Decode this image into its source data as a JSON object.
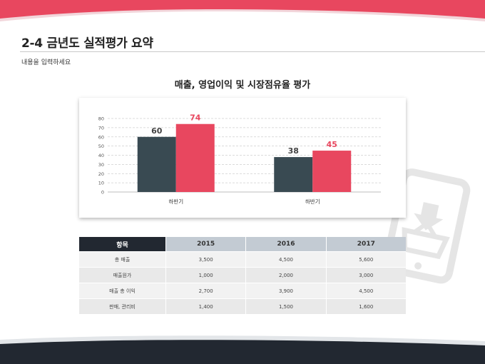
{
  "slide": {
    "title": "2-4 금년도 실적평가 요약",
    "subtitle": "내용을 입력하세요"
  },
  "colors": {
    "accent": "#e8475f",
    "dark": "#394a52",
    "table_header_dark": "#222831",
    "table_header_light": "#c3cbd3"
  },
  "chart_data": {
    "type": "bar",
    "title": "매출, 영업이익 및 시장점유율 평가",
    "categories": [
      "하반기",
      "하반기"
    ],
    "series": [
      {
        "values": [
          60,
          38
        ],
        "color": "#394a52"
      },
      {
        "values": [
          74,
          45
        ],
        "color": "#e8475f"
      }
    ],
    "ylim": [
      0,
      80
    ],
    "yticks": [
      0,
      10,
      20,
      30,
      40,
      50,
      60,
      70,
      80
    ],
    "grid": true
  },
  "table": {
    "headers": [
      "항목",
      "2015",
      "2016",
      "2017"
    ],
    "rows": [
      [
        "총 매출",
        "3,500",
        "4,500",
        "5,600"
      ],
      [
        "매출원가",
        "1,000",
        "2,000",
        "3,000"
      ],
      [
        "매출 총 이익",
        "2,700",
        "3,900",
        "4,500"
      ],
      [
        "판매, 관리비",
        "1,400",
        "1,500",
        "1,600"
      ]
    ]
  }
}
